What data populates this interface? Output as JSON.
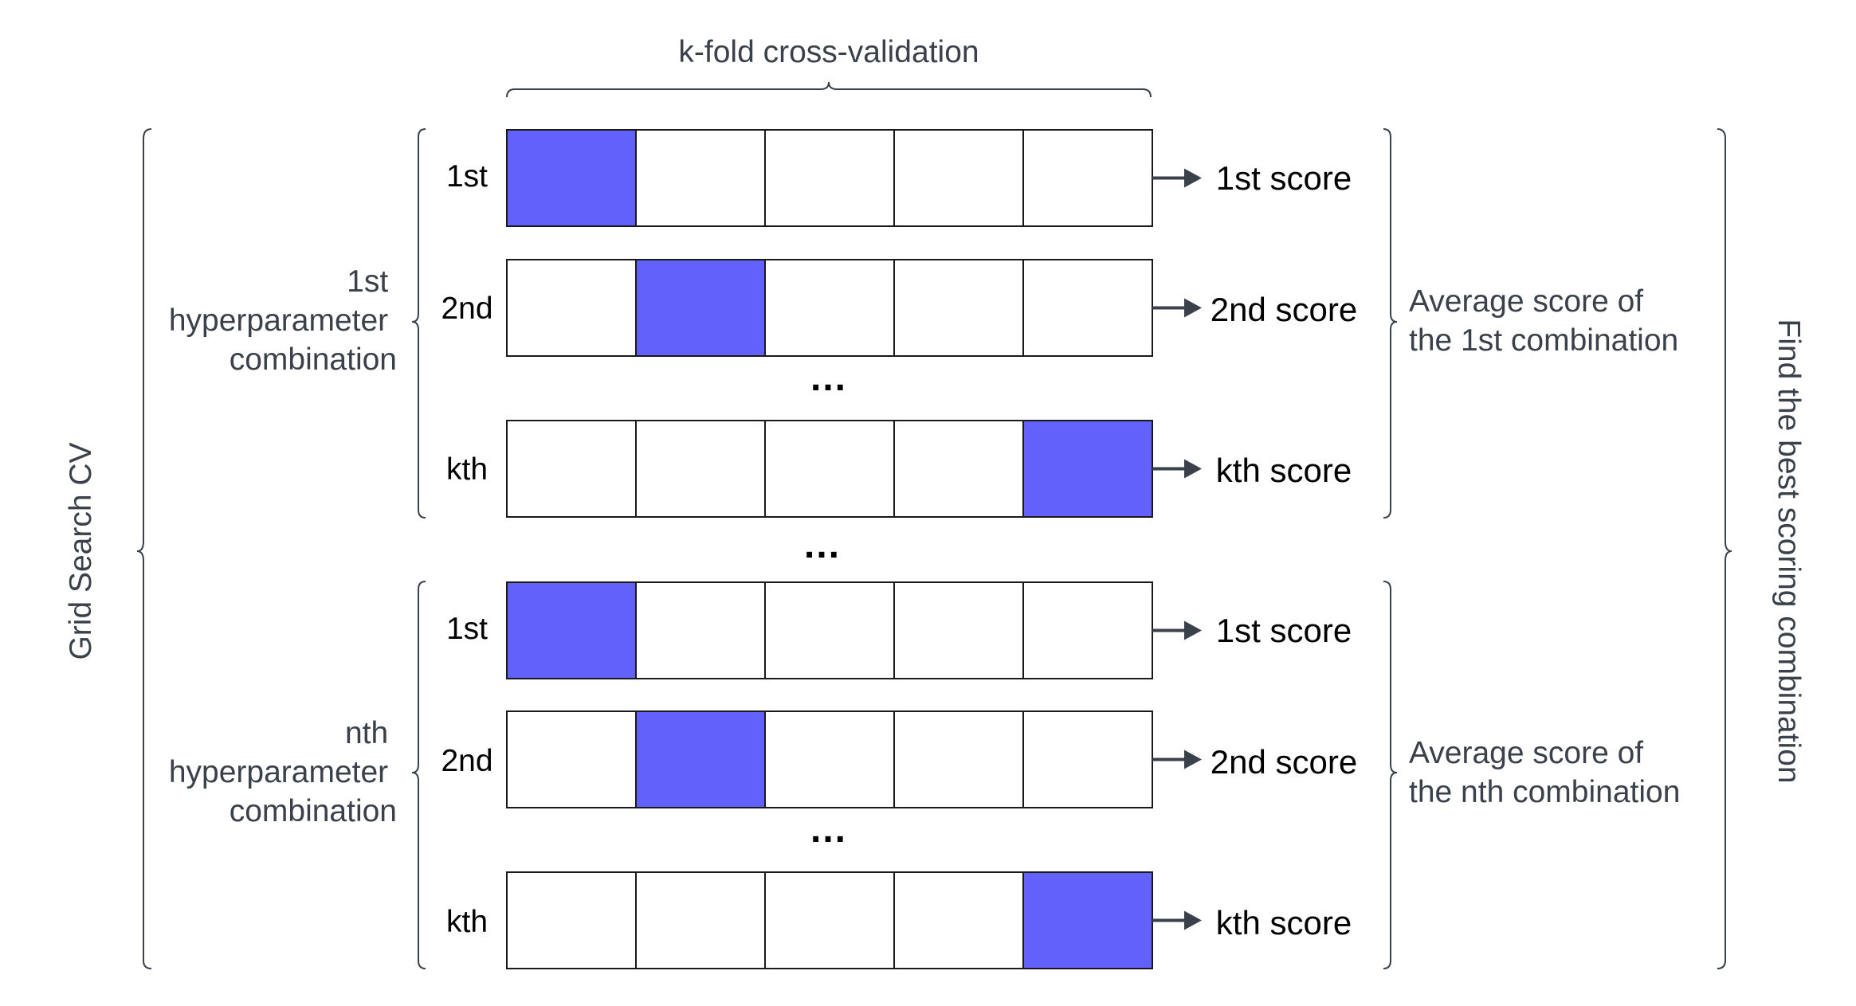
{
  "colors": {
    "test_fold": "#6361fb",
    "train_fold": "#ffffff",
    "outline": "#1a1a1a",
    "brace": "#3a414a",
    "text_grey": "#3a414a",
    "text_dark": "#000000"
  },
  "title_top": "k-fold cross-validation",
  "left_vertical": "Grid Search CV",
  "right_vertical": "Find the best scoring combination",
  "vertical_dots": "...",
  "groups": [
    {
      "combo_label": [
        "1st",
        "hyperparameter",
        "combination"
      ],
      "average_label": [
        "Average score of",
        "the 1st combination"
      ],
      "rows": [
        {
          "fold": "1st",
          "score": "1st score",
          "test_index": 0
        },
        {
          "fold": "2nd",
          "score": "2nd score",
          "test_index": 1
        },
        {
          "fold": "kth",
          "score": "kth score",
          "test_index": 4
        }
      ],
      "ellipsis": "..."
    },
    {
      "combo_label": [
        "nth",
        "hyperparameter",
        "combination"
      ],
      "average_label": [
        "Average score of",
        "the nth combination"
      ],
      "rows": [
        {
          "fold": "1st",
          "score": "1st score",
          "test_index": 0
        },
        {
          "fold": "2nd",
          "score": "2nd score",
          "test_index": 1
        },
        {
          "fold": "kth",
          "score": "kth score",
          "test_index": 4
        }
      ],
      "ellipsis": "..."
    }
  ],
  "folds_per_row": 5
}
